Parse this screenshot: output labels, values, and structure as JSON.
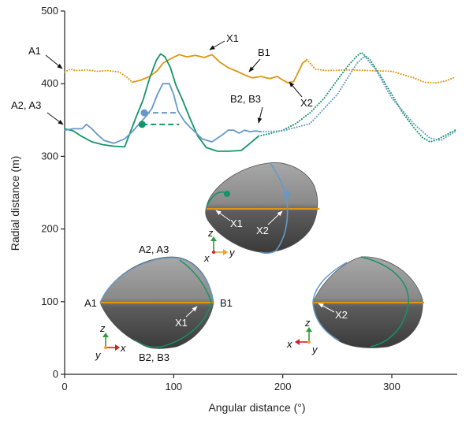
{
  "chart_data": {
    "type": "line",
    "xlabel": "Angular distance (°)",
    "ylabel": "Radial distance (m)",
    "xlim": [
      0,
      360
    ],
    "ylim": [
      0,
      500
    ],
    "xticks": [
      0,
      100,
      200,
      300
    ],
    "yticks": [
      0,
      100,
      200,
      300,
      400,
      500
    ],
    "grid": false,
    "colors": {
      "orange": "#E0960F",
      "green": "#14946A",
      "blue": "#6699C6",
      "shape": "#6f6f6f"
    },
    "series": [
      {
        "color": "#E0960F",
        "style": "dotted",
        "x": [
          0,
          5,
          10,
          20,
          30,
          40,
          50,
          58,
          62
        ],
        "y": [
          416,
          420,
          418,
          419,
          417,
          418,
          416,
          408,
          402
        ]
      },
      {
        "color": "#E0960F",
        "style": "solid",
        "x": [
          62,
          70,
          78,
          85,
          90,
          98,
          105,
          112,
          120,
          128,
          135,
          142,
          150,
          158,
          165,
          172,
          180,
          188,
          195,
          200,
          205,
          210,
          214,
          218,
          222
        ],
        "y": [
          402,
          405,
          410,
          418,
          428,
          435,
          440,
          437,
          439,
          436,
          440,
          430,
          422,
          417,
          412,
          408,
          410,
          407,
          410,
          405,
          401,
          403,
          415,
          428,
          433
        ]
      },
      {
        "color": "#E0960F",
        "style": "dotted",
        "x": [
          222,
          230,
          240,
          260,
          280,
          300,
          320,
          330,
          340,
          350,
          358
        ],
        "y": [
          433,
          420,
          418,
          419,
          418,
          417,
          408,
          402,
          401,
          404,
          409
        ]
      },
      {
        "color": "#14946A",
        "style": "solid",
        "x": [
          0,
          8,
          15,
          25,
          35,
          45,
          55,
          65,
          72,
          78,
          84,
          88,
          92,
          97,
          102,
          108,
          115,
          122,
          130,
          140,
          150,
          162,
          170,
          178
        ],
        "y": [
          338,
          335,
          328,
          320,
          316,
          314,
          313,
          352,
          378,
          408,
          432,
          441,
          437,
          422,
          398,
          378,
          352,
          328,
          312,
          307,
          307,
          308,
          318,
          328
        ]
      },
      {
        "color": "#14946A",
        "style": "dotted",
        "x": [
          178,
          190,
          200,
          212,
          225,
          238,
          250,
          260,
          268,
          272,
          280,
          290,
          300,
          310,
          320,
          328,
          335,
          340,
          348,
          358
        ],
        "y": [
          328,
          332,
          336,
          345,
          360,
          380,
          405,
          425,
          438,
          443,
          433,
          410,
          385,
          360,
          340,
          326,
          320,
          322,
          328,
          336
        ]
      },
      {
        "color": "#6699C6",
        "style": "solid",
        "x": [
          0,
          8,
          16,
          20,
          25,
          30,
          36,
          45,
          55,
          62,
          68,
          75,
          80,
          85,
          90,
          96,
          100,
          104,
          110,
          115,
          120,
          126,
          135,
          145,
          150,
          155,
          160,
          165,
          170,
          175,
          180
        ],
        "y": [
          336,
          338,
          338,
          344,
          338,
          330,
          322,
          318,
          324,
          334,
          344,
          356,
          366,
          385,
          400,
          400,
          385,
          362,
          348,
          340,
          333,
          324,
          320,
          330,
          336,
          336,
          332,
          336,
          334,
          335,
          334
        ]
      },
      {
        "color": "#6699C6",
        "style": "dotted",
        "x": [
          180,
          200,
          225,
          250,
          268,
          275,
          285,
          300,
          320,
          335,
          345,
          358
        ],
        "y": [
          334,
          335,
          345,
          385,
          428,
          438,
          420,
          380,
          345,
          325,
          322,
          334
        ]
      }
    ],
    "markers": [
      {
        "color": "#6699C6",
        "x": 73,
        "y": 360,
        "dash_to_x": 105
      },
      {
        "color": "#14946A",
        "x": 71,
        "y": 344,
        "dash_to_x": 105
      }
    ],
    "annotations": [
      {
        "text": "A1"
      },
      {
        "text": "A2, A3"
      },
      {
        "text": "X1"
      },
      {
        "text": "B1"
      },
      {
        "text": "B2, B3"
      },
      {
        "text": "X2"
      }
    ],
    "insets": [
      {
        "labels": [
          "A2, A3",
          "A1",
          "B1",
          "X1",
          "B2, B3"
        ],
        "axes": [
          "z",
          "y",
          "x"
        ]
      },
      {
        "labels": [
          "X1",
          "X2"
        ],
        "axes": [
          "z",
          "x",
          "y"
        ]
      },
      {
        "labels": [
          "X2"
        ],
        "axes": [
          "z",
          "x",
          "y"
        ]
      }
    ]
  }
}
